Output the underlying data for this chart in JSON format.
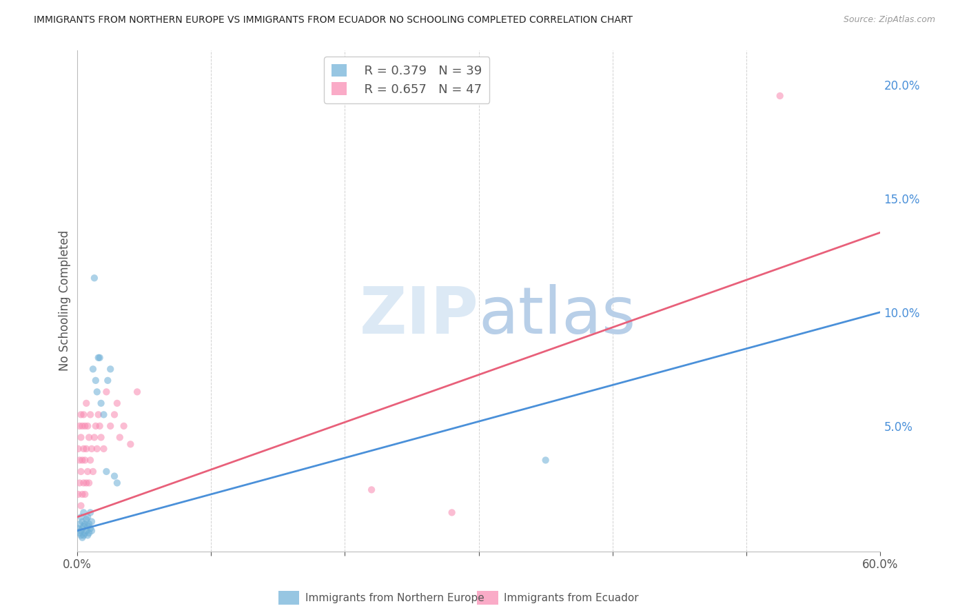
{
  "title": "IMMIGRANTS FROM NORTHERN EUROPE VS IMMIGRANTS FROM ECUADOR NO SCHOOLING COMPLETED CORRELATION CHART",
  "source": "Source: ZipAtlas.com",
  "ylabel": "No Schooling Completed",
  "xlim": [
    0.0,
    0.6
  ],
  "ylim": [
    -0.005,
    0.215
  ],
  "xticks": [
    0.0,
    0.1,
    0.2,
    0.3,
    0.4,
    0.5,
    0.6
  ],
  "xticklabels": [
    "0.0%",
    "",
    "",
    "",
    "",
    "",
    "60.0%"
  ],
  "yticks_right": [
    0.0,
    0.05,
    0.1,
    0.15,
    0.2
  ],
  "yticklabels_right": [
    "",
    "5.0%",
    "10.0%",
    "15.0%",
    "20.0%"
  ],
  "legend_blue_R": "R = 0.379",
  "legend_blue_N": "N = 39",
  "legend_pink_R": "R = 0.657",
  "legend_pink_N": "N = 47",
  "legend_label_blue": "Immigrants from Northern Europe",
  "legend_label_pink": "Immigrants from Ecuador",
  "blue_color": "#6baed6",
  "pink_color": "#f888b0",
  "blue_line_color": "#4a90d9",
  "pink_line_color": "#e8607a",
  "blue_text_color": "#4a90d9",
  "pink_text_color": "#e8607a",
  "green_text_color": "#2ca02c",
  "watermark_zip": "ZIP",
  "watermark_atlas": "atlas",
  "background_color": "#ffffff",
  "grid_color": "#cccccc",
  "title_color": "#333333",
  "marker_size": 55,
  "blue_scatter_x": [
    0.001,
    0.002,
    0.002,
    0.003,
    0.003,
    0.003,
    0.004,
    0.004,
    0.004,
    0.005,
    0.005,
    0.005,
    0.006,
    0.006,
    0.007,
    0.007,
    0.008,
    0.008,
    0.008,
    0.009,
    0.009,
    0.01,
    0.01,
    0.011,
    0.011,
    0.012,
    0.013,
    0.014,
    0.015,
    0.016,
    0.017,
    0.018,
    0.02,
    0.022,
    0.023,
    0.025,
    0.028,
    0.03,
    0.35
  ],
  "blue_scatter_y": [
    0.005,
    0.003,
    0.007,
    0.002,
    0.004,
    0.01,
    0.001,
    0.005,
    0.008,
    0.002,
    0.006,
    0.012,
    0.003,
    0.007,
    0.004,
    0.009,
    0.002,
    0.006,
    0.01,
    0.003,
    0.007,
    0.005,
    0.012,
    0.004,
    0.008,
    0.075,
    0.115,
    0.07,
    0.065,
    0.08,
    0.08,
    0.06,
    0.055,
    0.03,
    0.07,
    0.075,
    0.028,
    0.025,
    0.035
  ],
  "pink_scatter_x": [
    0.001,
    0.001,
    0.002,
    0.002,
    0.002,
    0.003,
    0.003,
    0.003,
    0.003,
    0.004,
    0.004,
    0.004,
    0.005,
    0.005,
    0.005,
    0.006,
    0.006,
    0.006,
    0.007,
    0.007,
    0.007,
    0.008,
    0.008,
    0.009,
    0.009,
    0.01,
    0.01,
    0.011,
    0.012,
    0.013,
    0.014,
    0.015,
    0.016,
    0.017,
    0.018,
    0.02,
    0.022,
    0.025,
    0.028,
    0.03,
    0.032,
    0.035,
    0.04,
    0.045,
    0.22,
    0.525,
    0.28
  ],
  "pink_scatter_y": [
    0.02,
    0.04,
    0.025,
    0.035,
    0.05,
    0.015,
    0.03,
    0.045,
    0.055,
    0.02,
    0.035,
    0.05,
    0.025,
    0.04,
    0.055,
    0.02,
    0.035,
    0.05,
    0.025,
    0.04,
    0.06,
    0.03,
    0.05,
    0.025,
    0.045,
    0.035,
    0.055,
    0.04,
    0.03,
    0.045,
    0.05,
    0.04,
    0.055,
    0.05,
    0.045,
    0.04,
    0.065,
    0.05,
    0.055,
    0.06,
    0.045,
    0.05,
    0.042,
    0.065,
    0.022,
    0.195,
    0.012
  ],
  "blue_line_x": [
    0.0,
    0.6
  ],
  "blue_line_y": [
    0.004,
    0.1
  ],
  "pink_line_x": [
    0.0,
    0.6
  ],
  "pink_line_y": [
    0.01,
    0.135
  ]
}
